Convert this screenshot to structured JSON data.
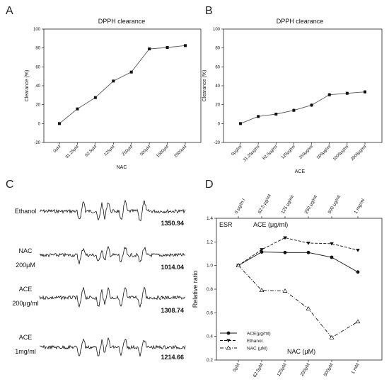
{
  "panels": {
    "A": "A",
    "B": "B",
    "C": "C",
    "D": "D"
  },
  "chart_data": [
    {
      "type": "line",
      "panel": "A",
      "title": "DPPH clearance",
      "xlabel": "NAC",
      "ylabel": "Clearance (%)",
      "categories": [
        "0μM",
        "31.25μM",
        "62.5μM",
        "125μM",
        "250μM",
        "500μM",
        "1000μM",
        "2000μM"
      ],
      "values": [
        0,
        15.5,
        27.5,
        45,
        54.5,
        79,
        80.5,
        82.5
      ],
      "ylim": [
        -20,
        100
      ],
      "yticks": [
        "-20",
        "0",
        "20",
        "40",
        "60",
        "80",
        "100"
      ],
      "grid": false
    },
    {
      "type": "line",
      "panel": "B",
      "title": "DPPH clearance",
      "xlabel": "ACE",
      "ylabel": "Clearance (%)",
      "categories": [
        "0μg/ml",
        "31.25μg/ml",
        "62.5μg/ml",
        "125μg/ml",
        "250μg/ml",
        "500μg/ml",
        "1000μg/ml",
        "2000μg/ml"
      ],
      "values": [
        0,
        7.5,
        10,
        14,
        19.5,
        30.5,
        32,
        33.5
      ],
      "ylim": [
        -20,
        100
      ],
      "yticks": [
        "-20",
        "0",
        "20",
        "40",
        "60",
        "80",
        "100"
      ],
      "grid": false
    },
    {
      "type": "other",
      "panel": "C",
      "spectra": [
        {
          "label_lines": [
            "Ethanol"
          ],
          "value": "1350.94"
        },
        {
          "label_lines": [
            "NAC",
            "200μM"
          ],
          "value": "1014.04"
        },
        {
          "label_lines": [
            "ACE",
            "200μg/ml"
          ],
          "value": "1308.74"
        },
        {
          "label_lines": [
            "ACE",
            "1mg/ml"
          ],
          "value": "1214.66"
        }
      ]
    },
    {
      "type": "line",
      "panel": "D",
      "inner_label": "ESR",
      "top_axis_label": "ACE (μg/ml)",
      "bottom_axis_label": "NAC (μM)",
      "ylabel": "Relative ratio",
      "top_categories": [
        "0 μg/m l",
        "62.5 μg/ml",
        "125 μg/ml",
        "250 μg/ml",
        "500 μg/ml",
        "1 mg/ml"
      ],
      "bottom_categories": [
        "0μM",
        "62.5μM",
        "125μM",
        "250μM",
        "500μM",
        "1 mM"
      ],
      "ylim": [
        0.2,
        1.4
      ],
      "yticks": [
        "0.2",
        "0.4",
        "0.6",
        "0.8",
        "1.0",
        "1.2",
        "1.4"
      ],
      "legend_position": "bottom-left",
      "series": [
        {
          "name": "ACE(μg/ml)",
          "values": [
            1.0,
            1.115,
            1.11,
            1.11,
            1.07,
            0.945
          ],
          "style": "solid",
          "marker": "circle-filled"
        },
        {
          "name": "Ethanol",
          "values": [
            1.0,
            1.135,
            1.235,
            1.19,
            1.185,
            1.13
          ],
          "style": "dashed",
          "marker": "triangle-down-filled"
        },
        {
          "name": "NAC (μM)",
          "values": [
            1.0,
            0.79,
            0.785,
            0.635,
            0.39,
            0.525
          ],
          "style": "dashdot",
          "marker": "triangle-up-open"
        }
      ]
    }
  ]
}
